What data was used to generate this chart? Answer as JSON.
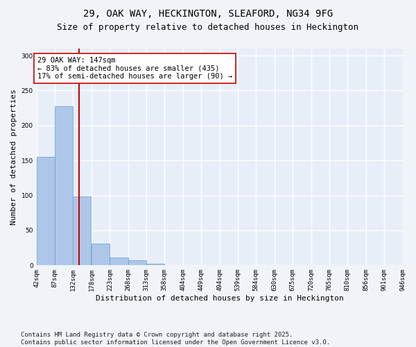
{
  "title_line1": "29, OAK WAY, HECKINGTON, SLEAFORD, NG34 9FG",
  "title_line2": "Size of property relative to detached houses in Heckington",
  "xlabel": "Distribution of detached houses by size in Heckington",
  "ylabel": "Number of detached properties",
  "bar_color": "#aec6e8",
  "bar_edge_color": "#5a9fd4",
  "background_color": "#e8eef8",
  "fig_background_color": "#f0f4f8",
  "grid_color": "#ffffff",
  "vline_x": 147,
  "vline_color": "#cc0000",
  "annotation_text": "29 OAK WAY: 147sqm\n← 83% of detached houses are smaller (435)\n17% of semi-detached houses are larger (90) →",
  "annotation_box_color": "#ffffff",
  "annotation_box_edge": "#cc0000",
  "bin_edges": [
    42,
    87,
    132,
    178,
    223,
    268,
    313,
    358,
    404,
    449,
    494,
    539,
    584,
    630,
    675,
    720,
    765,
    810,
    856,
    901,
    946
  ],
  "bar_heights": [
    155,
    228,
    99,
    31,
    11,
    7,
    2,
    0,
    0,
    0,
    0,
    0,
    0,
    0,
    0,
    0,
    0,
    0,
    0,
    0
  ],
  "ylim": [
    0,
    310
  ],
  "yticks": [
    0,
    50,
    100,
    150,
    200,
    250,
    300
  ],
  "footnote": "Contains HM Land Registry data © Crown copyright and database right 2025.\nContains public sector information licensed under the Open Government Licence v3.0.",
  "title_fontsize": 10,
  "subtitle_fontsize": 9,
  "axis_label_fontsize": 8,
  "tick_fontsize": 6.5,
  "annotation_fontsize": 7.5,
  "footnote_fontsize": 6.5
}
